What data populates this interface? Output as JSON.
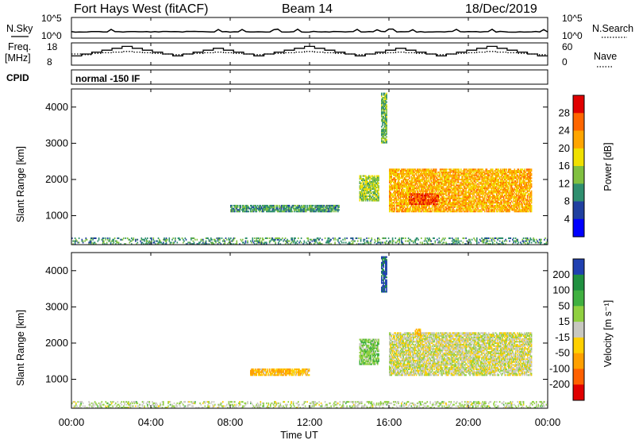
{
  "header": {
    "radar_name": "Fort Hays West (fitACF)",
    "beam": "Beam 14",
    "date": "18/Dec/2019"
  },
  "top_panels": {
    "nsky_label": "N.Sky",
    "nsky_ticks": [
      "10^5",
      "10^0"
    ],
    "nsearch_label": "N.Search",
    "nsearch_ticks": [
      "10^5",
      "10^0"
    ],
    "freq_label_1": "Freq.",
    "freq_label_2": "[MHz]",
    "freq_ticks": [
      "18",
      "8"
    ],
    "nave_label": "Nave",
    "nave_ticks": [
      "60",
      "0"
    ],
    "cpid_label": "CPID",
    "mode_text": "normal -150 IF",
    "freq_levels": [
      12,
      13,
      14,
      15,
      16,
      17,
      16,
      15,
      14,
      13,
      12,
      13,
      14,
      15,
      16,
      15,
      14,
      13,
      12,
      13,
      14,
      15,
      16,
      17,
      16,
      15,
      14,
      13,
      12,
      13,
      14,
      15,
      16,
      15,
      14,
      13,
      12,
      13,
      14,
      15,
      16,
      17,
      16,
      15,
      14,
      13,
      12
    ],
    "nave_levels": [
      30,
      28,
      32,
      34,
      36,
      38,
      36,
      34,
      32,
      30,
      28,
      30,
      32,
      34,
      36,
      34,
      32,
      30,
      28,
      30,
      32,
      34,
      36,
      38,
      36,
      34,
      32,
      30,
      28,
      30,
      32,
      34,
      36,
      34,
      32,
      30,
      28,
      30,
      32,
      34,
      36,
      38,
      36,
      34,
      32,
      30,
      28
    ]
  },
  "power_panel": {
    "ylabel": "Slant Range [km]",
    "colorbar_label": "Power [dB]",
    "colorbar_ticks": [
      "28",
      "24",
      "20",
      "16",
      "12",
      "8",
      "4"
    ],
    "colors": [
      "#e00000",
      "#ff6600",
      "#ffa500",
      "#f0e000",
      "#80c040",
      "#2f8f6f",
      "#2040a0",
      "#0000ff"
    ]
  },
  "velocity_panel": {
    "ylabel": "Slant Range [km]",
    "colorbar_label": "Velocity [m s⁻¹]",
    "colorbar_ticks": [
      "200",
      "100",
      "50",
      "15",
      "-15",
      "-50",
      "-100",
      "-200"
    ],
    "colors": [
      "#2040b0",
      "#209040",
      "#40b040",
      "#90d040",
      "#c8c8c0",
      "#ffd000",
      "#ffa000",
      "#ff6000",
      "#e00000"
    ]
  },
  "axes": {
    "y_ticks": [
      "4000",
      "3000",
      "2000",
      "1000"
    ],
    "x_ticks": [
      "00:00",
      "04:00",
      "08:00",
      "12:00",
      "16:00",
      "20:00",
      "00:00"
    ],
    "xlabel": "Time UT"
  },
  "chart_data": {
    "type": "heatmap",
    "title": "Fort Hays West (fitACF)",
    "subtitle": "Beam 14",
    "date": "18/Dec/2019",
    "xlabel": "Time UT",
    "ylabel": "Slant Range [km]",
    "x_range_hours": [
      0,
      24
    ],
    "y_range_km": [
      200,
      4500
    ],
    "panels": [
      {
        "name": "Power [dB]",
        "colorbar_range": [
          0,
          30
        ],
        "features": [
          {
            "t_start": 0.0,
            "t_end": 24.0,
            "range_low": 200,
            "range_high": 400,
            "value": 10
          },
          {
            "t_start": 8.0,
            "t_end": 13.5,
            "range_low": 1100,
            "range_high": 1300,
            "value": 10
          },
          {
            "t_start": 14.5,
            "t_end": 15.5,
            "range_low": 1400,
            "range_high": 2100,
            "value": 14
          },
          {
            "t_start": 15.6,
            "t_end": 15.9,
            "range_low": 3000,
            "range_high": 4400,
            "value": 12
          },
          {
            "t_start": 16.0,
            "t_end": 23.2,
            "range_low": 1100,
            "range_high": 2300,
            "value": 20
          },
          {
            "t_start": 17.0,
            "t_end": 18.5,
            "range_low": 1300,
            "range_high": 1600,
            "value": 26
          }
        ]
      },
      {
        "name": "Velocity [m s-1]",
        "colorbar_range": [
          -200,
          200
        ],
        "features": [
          {
            "t_start": 0.0,
            "t_end": 24.0,
            "range_low": 200,
            "range_high": 400,
            "value": 20
          },
          {
            "t_start": 9.0,
            "t_end": 12.0,
            "range_low": 1100,
            "range_high": 1300,
            "value": -60
          },
          {
            "t_start": 14.5,
            "t_end": 15.5,
            "range_low": 1400,
            "range_high": 2100,
            "value": 50
          },
          {
            "t_start": 15.6,
            "t_end": 15.9,
            "range_low": 3400,
            "range_high": 4400,
            "value": 180
          },
          {
            "t_start": 16.0,
            "t_end": 23.2,
            "range_low": 1100,
            "range_high": 2300,
            "value": 0
          },
          {
            "t_start": 17.3,
            "t_end": 17.6,
            "range_low": 2200,
            "range_high": 2400,
            "value": -60
          }
        ]
      }
    ]
  }
}
